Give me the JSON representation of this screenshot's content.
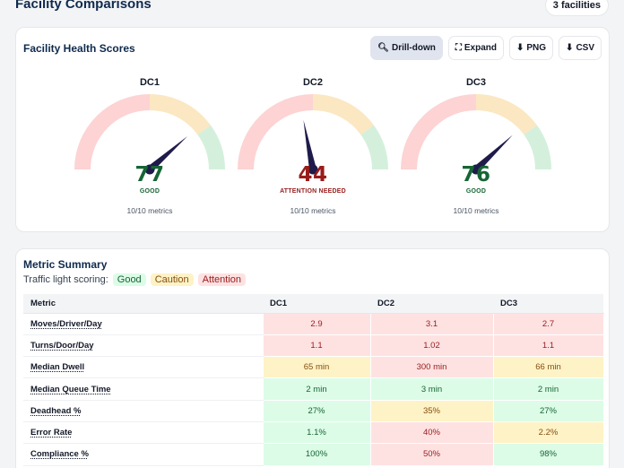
{
  "page": {
    "title": "Facility Comparisons",
    "count_label": "3 facilities"
  },
  "health": {
    "title": "Facility Health Scores",
    "toolbar": {
      "drilldown": {
        "label": "Drill-down",
        "icon": "magnifier-icon"
      },
      "expand": {
        "label": "Expand",
        "icon": "expand-icon"
      },
      "png": {
        "label": "PNG",
        "icon": "download-icon"
      },
      "csv": {
        "label": "CSV",
        "icon": "download-icon"
      }
    },
    "gauges": [
      {
        "name": "DC1",
        "score": 77,
        "status": "GOOD",
        "metrics": "10/10 metrics",
        "color": "#166534"
      },
      {
        "name": "DC2",
        "score": 44,
        "status": "ATTENTION NEEDED",
        "metrics": "10/10 metrics",
        "color": "#991b1b"
      },
      {
        "name": "DC3",
        "score": 76,
        "status": "GOOD",
        "metrics": "10/10 metrics",
        "color": "#166534"
      }
    ],
    "zone_colors": {
      "attention": "#fdd3d3",
      "caution": "#fbe7c2",
      "good": "#d4f0dc",
      "needle": "#1e1b4b"
    }
  },
  "summary": {
    "title": "Metric Summary",
    "legend_label": "Traffic light scoring:",
    "legend": {
      "good": "Good",
      "caution": "Caution",
      "attention": "Attention"
    },
    "columns": [
      "Metric",
      "DC1",
      "DC2",
      "DC3"
    ],
    "rows": [
      {
        "metric": "Moves/Driver/Day",
        "cells": [
          {
            "v": "2.9",
            "s": "attention"
          },
          {
            "v": "3.1",
            "s": "attention"
          },
          {
            "v": "2.7",
            "s": "attention"
          }
        ]
      },
      {
        "metric": "Turns/Door/Day",
        "cells": [
          {
            "v": "1.1",
            "s": "attention"
          },
          {
            "v": "1.02",
            "s": "attention"
          },
          {
            "v": "1.1",
            "s": "attention"
          }
        ]
      },
      {
        "metric": "Median Dwell",
        "cells": [
          {
            "v": "65 min",
            "s": "caution"
          },
          {
            "v": "300 min",
            "s": "attention"
          },
          {
            "v": "66 min",
            "s": "caution"
          }
        ]
      },
      {
        "metric": "Median Queue Time",
        "cells": [
          {
            "v": "2 min",
            "s": "good"
          },
          {
            "v": "3 min",
            "s": "good"
          },
          {
            "v": "2 min",
            "s": "good"
          }
        ]
      },
      {
        "metric": "Deadhead %",
        "cells": [
          {
            "v": "27%",
            "s": "good"
          },
          {
            "v": "35%",
            "s": "caution"
          },
          {
            "v": "27%",
            "s": "good"
          }
        ]
      },
      {
        "metric": "Error Rate",
        "cells": [
          {
            "v": "1.1%",
            "s": "good"
          },
          {
            "v": "40%",
            "s": "attention"
          },
          {
            "v": "2.2%",
            "s": "caution"
          }
        ]
      },
      {
        "metric": "Compliance %",
        "cells": [
          {
            "v": "100%",
            "s": "good"
          },
          {
            "v": "50%",
            "s": "attention"
          },
          {
            "v": "98%",
            "s": "good"
          }
        ]
      }
    ]
  }
}
